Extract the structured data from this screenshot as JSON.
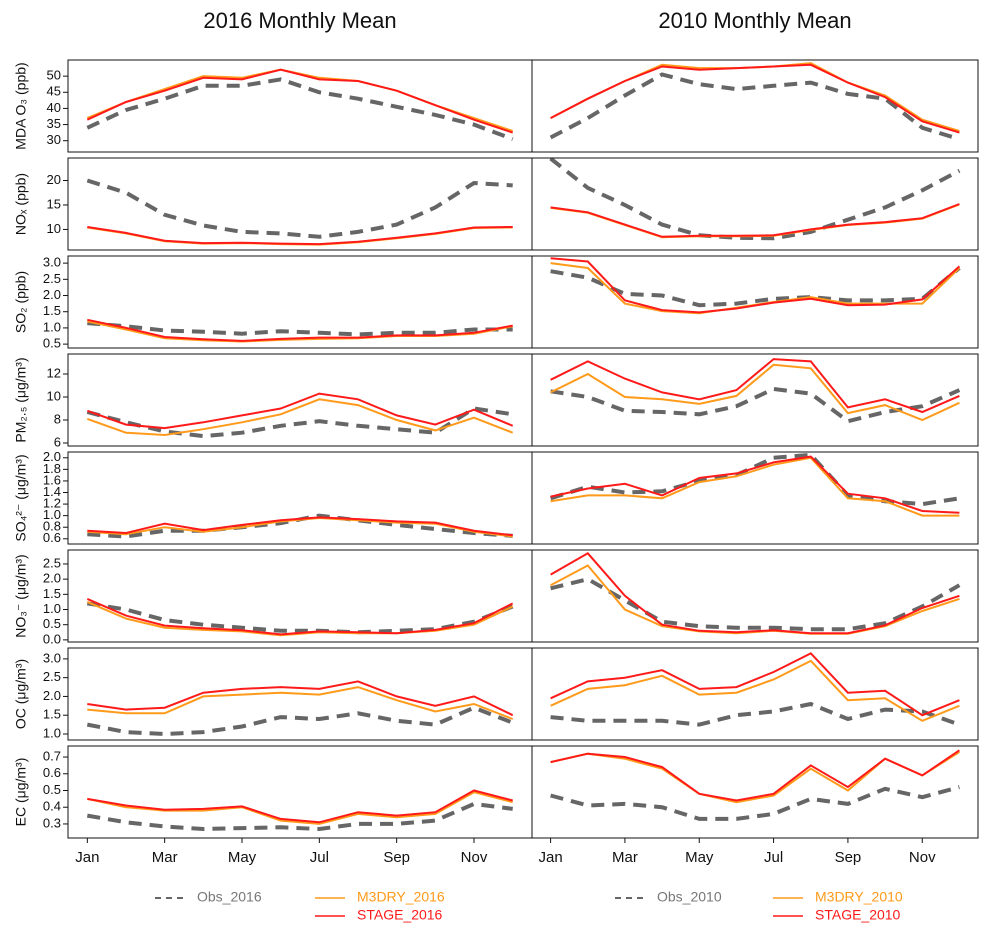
{
  "chart_data": {
    "type": "line",
    "categories": [
      "Jan",
      null,
      "Mar",
      null,
      "May",
      null,
      "Jul",
      null,
      "Sep",
      null,
      "Nov",
      null
    ],
    "columns": [
      {
        "title": "2016 Monthly Mean",
        "series": [
          {
            "name": "Obs_2016",
            "color": "#666666",
            "dashed": true
          },
          {
            "name": "M3DRY_2016",
            "color": "#ff9a1a",
            "dashed": false
          },
          {
            "name": "STAGE_2016",
            "color": "#ff1a1a",
            "dashed": false
          }
        ]
      },
      {
        "title": "2010 Monthly Mean",
        "series": [
          {
            "name": "Obs_2010",
            "color": "#666666",
            "dashed": true
          },
          {
            "name": "M3DRY_2010",
            "color": "#ff9a1a",
            "dashed": false
          },
          {
            "name": "STAGE_2010",
            "color": "#ff1a1a",
            "dashed": false
          }
        ]
      }
    ],
    "rows": [
      {
        "ylabel": "MDA O₃ (ppb)",
        "ylim": [
          26.5,
          55
        ],
        "yticks": [
          30,
          35,
          40,
          45,
          50
        ],
        "values": [
          [
            [
              34,
              39.5,
              43,
              47,
              47,
              49,
              45,
              43,
              40.5,
              38,
              35,
              30.5
            ],
            [
              37,
              42,
              46,
              50,
              49.5,
              52,
              49.5,
              48.5,
              45.5,
              41,
              37,
              33
            ],
            [
              36.5,
              42,
              45.5,
              49.5,
              49,
              52,
              49,
              48.5,
              45.5,
              41,
              36.5,
              32.5
            ]
          ],
          [
            [
              31,
              37,
              44,
              50.5,
              47.5,
              46,
              47,
              48,
              44.5,
              43,
              34,
              30.5
            ],
            [
              37,
              43,
              48.5,
              53.5,
              52.5,
              52.5,
              53,
              54,
              48,
              44,
              36.5,
              33
            ],
            [
              37,
              43,
              48.5,
              53,
              52,
              52.5,
              53,
              53.5,
              48,
              43.5,
              36,
              32.5
            ]
          ]
        ]
      },
      {
        "ylabel": "NOₓ (ppb)",
        "ylim": [
          5.8,
          24.6
        ],
        "yticks": [
          10,
          15,
          20
        ],
        "values": [
          [
            [
              20,
              17.5,
              13,
              10.8,
              9.5,
              9.2,
              8.5,
              9.5,
              11,
              14.5,
              19.5,
              19
            ],
            [
              10.4,
              9.2,
              7.6,
              7.1,
              7.2,
              7,
              6.9,
              7.4,
              8.2,
              9.1,
              10.3,
              10.4
            ],
            [
              10.5,
              9.3,
              7.7,
              7.2,
              7.3,
              7.1,
              7,
              7.5,
              8.3,
              9.2,
              10.4,
              10.5
            ]
          ],
          [
            [
              24.5,
              18.5,
              15,
              11,
              8.8,
              8.3,
              8.2,
              9.5,
              12,
              14.5,
              18,
              22
            ],
            [
              14.4,
              13.4,
              10.9,
              8.4,
              8.6,
              8.6,
              8.7,
              9.9,
              10.9,
              11.4,
              12.2,
              15.1
            ],
            [
              14.5,
              13.5,
              11,
              8.5,
              8.7,
              8.7,
              8.8,
              10,
              11,
              11.5,
              12.3,
              15.2
            ]
          ]
        ]
      },
      {
        "ylabel": "SO₂ (ppb)",
        "ylim": [
          0.38,
          3.22
        ],
        "yticks": [
          0.5,
          {
            "value": 1,
            "label": "1.0"
          },
          1.5,
          {
            "value": 2,
            "label": "2.0"
          },
          2.5,
          {
            "value": 3,
            "label": "3.0"
          }
        ],
        "values": [
          [
            [
              1.15,
              1.05,
              0.92,
              0.88,
              0.82,
              0.9,
              0.85,
              0.8,
              0.85,
              0.85,
              0.95,
              0.95
            ],
            [
              1.2,
              0.95,
              0.68,
              0.62,
              0.58,
              0.63,
              0.66,
              0.68,
              0.75,
              0.75,
              0.82,
              1.05
            ],
            [
              1.25,
              1,
              0.72,
              0.65,
              0.6,
              0.66,
              0.7,
              0.7,
              0.77,
              0.77,
              0.85,
              1.07
            ]
          ],
          [
            [
              2.75,
              2.55,
              2.05,
              2,
              1.7,
              1.75,
              1.9,
              1.95,
              1.85,
              1.85,
              1.9,
              2.85
            ],
            [
              3,
              2.85,
              1.75,
              1.52,
              1.45,
              1.62,
              1.8,
              1.95,
              1.75,
              1.75,
              1.75,
              2.85
            ],
            [
              3.15,
              3.05,
              1.85,
              1.55,
              1.48,
              1.6,
              1.78,
              1.9,
              1.7,
              1.72,
              1.88,
              2.9
            ]
          ]
        ]
      },
      {
        "ylabel": "PM₂.₅ (μg/m³)",
        "ylim": [
          5.74,
          13.74
        ],
        "yticks": [
          6,
          8,
          10,
          12
        ],
        "values": [
          [
            [
              8.7,
              7.8,
              7,
              6.6,
              6.9,
              7.5,
              7.9,
              7.5,
              7.2,
              6.9,
              9,
              8.5
            ],
            [
              8.1,
              6.9,
              6.7,
              7.2,
              7.8,
              8.5,
              9.8,
              9.3,
              8,
              7.1,
              8.2,
              6.9
            ],
            [
              8.8,
              7.6,
              7.3,
              7.8,
              8.4,
              9,
              10.3,
              9.8,
              8.4,
              7.6,
              8.9,
              7.5
            ]
          ],
          [
            [
              10.5,
              10,
              8.8,
              8.7,
              8.5,
              9.2,
              10.7,
              10.3,
              7.9,
              8.7,
              9.2,
              10.6
            ],
            [
              10.4,
              12,
              10,
              9.8,
              9.4,
              10.1,
              12.8,
              12.5,
              8.6,
              9.3,
              8,
              9.5
            ],
            [
              11.5,
              13.1,
              11.6,
              10.4,
              9.8,
              10.6,
              13.3,
              13.1,
              9.1,
              9.8,
              8.7,
              10.1
            ]
          ]
        ]
      },
      {
        "ylabel": "SO₄²⁻ (μg/m³)",
        "ylim": [
          0.51,
          2.1
        ],
        "yticks": [
          0.6,
          0.8,
          {
            "value": 1,
            "label": "1.0"
          },
          1.2,
          1.4,
          1.6,
          1.8,
          {
            "value": 2,
            "label": "2.0"
          }
        ],
        "values": [
          [
            [
              0.68,
              0.64,
              0.74,
              0.74,
              0.8,
              0.87,
              1,
              0.92,
              0.84,
              0.77,
              0.7,
              0.65
            ],
            [
              0.72,
              0.68,
              0.8,
              0.72,
              0.8,
              0.9,
              0.96,
              0.92,
              0.88,
              0.86,
              0.72,
              0.64
            ],
            [
              0.74,
              0.7,
              0.86,
              0.75,
              0.84,
              0.92,
              0.97,
              0.94,
              0.9,
              0.88,
              0.74,
              0.66
            ]
          ],
          [
            [
              1.3,
              1.5,
              1.4,
              1.42,
              1.6,
              1.7,
              2,
              2.05,
              1.35,
              1.25,
              1.2,
              1.3
            ],
            [
              1.25,
              1.35,
              1.35,
              1.3,
              1.58,
              1.68,
              1.88,
              2,
              1.3,
              1.25,
              1,
              1
            ],
            [
              1.33,
              1.47,
              1.55,
              1.35,
              1.65,
              1.73,
              1.92,
              2.02,
              1.38,
              1.3,
              1.08,
              1.05
            ]
          ]
        ]
      },
      {
        "ylabel": "NO₃⁻ (μg/m³)",
        "ylim": [
          -0.07,
          2.96
        ],
        "yticks": [
          {
            "value": 0,
            "label": "0.0"
          },
          0.5,
          {
            "value": 1,
            "label": "1.0"
          },
          1.5,
          {
            "value": 2,
            "label": "2.0"
          },
          2.5
        ],
        "values": [
          [
            [
              1.2,
              1,
              0.65,
              0.5,
              0.4,
              0.3,
              0.3,
              0.25,
              0.3,
              0.35,
              0.6,
              1.1
            ],
            [
              1.25,
              0.7,
              0.4,
              0.33,
              0.28,
              0.15,
              0.25,
              0.22,
              0.22,
              0.3,
              0.5,
              1.1
            ],
            [
              1.35,
              0.8,
              0.47,
              0.38,
              0.32,
              0.18,
              0.28,
              0.25,
              0.22,
              0.33,
              0.55,
              1.2
            ]
          ],
          [
            [
              1.7,
              2,
              1.3,
              0.6,
              0.45,
              0.4,
              0.4,
              0.35,
              0.35,
              0.55,
              1.1,
              1.8
            ],
            [
              1.8,
              2.45,
              1,
              0.45,
              0.28,
              0.22,
              0.3,
              0.2,
              0.2,
              0.45,
              0.95,
              1.35
            ],
            [
              2.15,
              2.85,
              1.45,
              0.5,
              0.3,
              0.25,
              0.32,
              0.22,
              0.22,
              0.48,
              1.05,
              1.45
            ]
          ]
        ]
      },
      {
        "ylabel": "OC (μg/m³)",
        "ylim": [
          0.84,
          3.29
        ],
        "yticks": [
          {
            "value": 1,
            "label": "1.0"
          },
          1.5,
          {
            "value": 2,
            "label": "2.0"
          },
          2.5,
          {
            "value": 3,
            "label": "3.0"
          }
        ],
        "values": [
          [
            [
              1.25,
              1.05,
              1,
              1.05,
              1.2,
              1.45,
              1.4,
              1.55,
              1.35,
              1.25,
              1.7,
              1.3
            ],
            [
              1.65,
              1.55,
              1.55,
              2,
              2.05,
              2.1,
              2.05,
              2.25,
              1.9,
              1.6,
              1.8,
              1.4
            ],
            [
              1.8,
              1.65,
              1.7,
              2.1,
              2.2,
              2.25,
              2.2,
              2.4,
              2,
              1.75,
              2,
              1.5
            ]
          ],
          [
            [
              1.45,
              1.35,
              1.35,
              1.35,
              1.25,
              1.5,
              1.6,
              1.8,
              1.4,
              1.65,
              1.6,
              1.25
            ],
            [
              1.75,
              2.2,
              2.3,
              2.55,
              2.05,
              2.1,
              2.45,
              2.95,
              1.9,
              1.95,
              1.35,
              1.75
            ],
            [
              1.95,
              2.4,
              2.5,
              2.7,
              2.2,
              2.25,
              2.65,
              3.15,
              2.1,
              2.15,
              1.5,
              1.9
            ]
          ]
        ]
      },
      {
        "ylabel": "EC (μg/m³)",
        "ylim": [
          0.216,
          0.766
        ],
        "yticks": [
          0.3,
          0.4,
          0.5,
          0.6,
          0.7
        ],
        "values": [
          [
            [
              0.35,
              0.31,
              0.285,
              0.27,
              0.275,
              0.28,
              0.27,
              0.3,
              0.3,
              0.32,
              0.42,
              0.39
            ],
            [
              0.45,
              0.4,
              0.38,
              0.38,
              0.4,
              0.32,
              0.3,
              0.36,
              0.34,
              0.36,
              0.49,
              0.43
            ],
            [
              0.45,
              0.41,
              0.385,
              0.39,
              0.405,
              0.33,
              0.31,
              0.37,
              0.35,
              0.37,
              0.5,
              0.44
            ]
          ],
          [
            [
              0.47,
              0.41,
              0.42,
              0.4,
              0.33,
              0.33,
              0.36,
              0.45,
              0.42,
              0.51,
              0.46,
              0.52
            ],
            [
              0.67,
              0.72,
              0.69,
              0.63,
              0.48,
              0.43,
              0.47,
              0.63,
              0.5,
              0.69,
              0.59,
              0.73
            ],
            [
              0.67,
              0.72,
              0.7,
              0.64,
              0.48,
              0.44,
              0.48,
              0.65,
              0.52,
              0.69,
              0.59,
              0.74
            ]
          ]
        ]
      }
    ]
  }
}
